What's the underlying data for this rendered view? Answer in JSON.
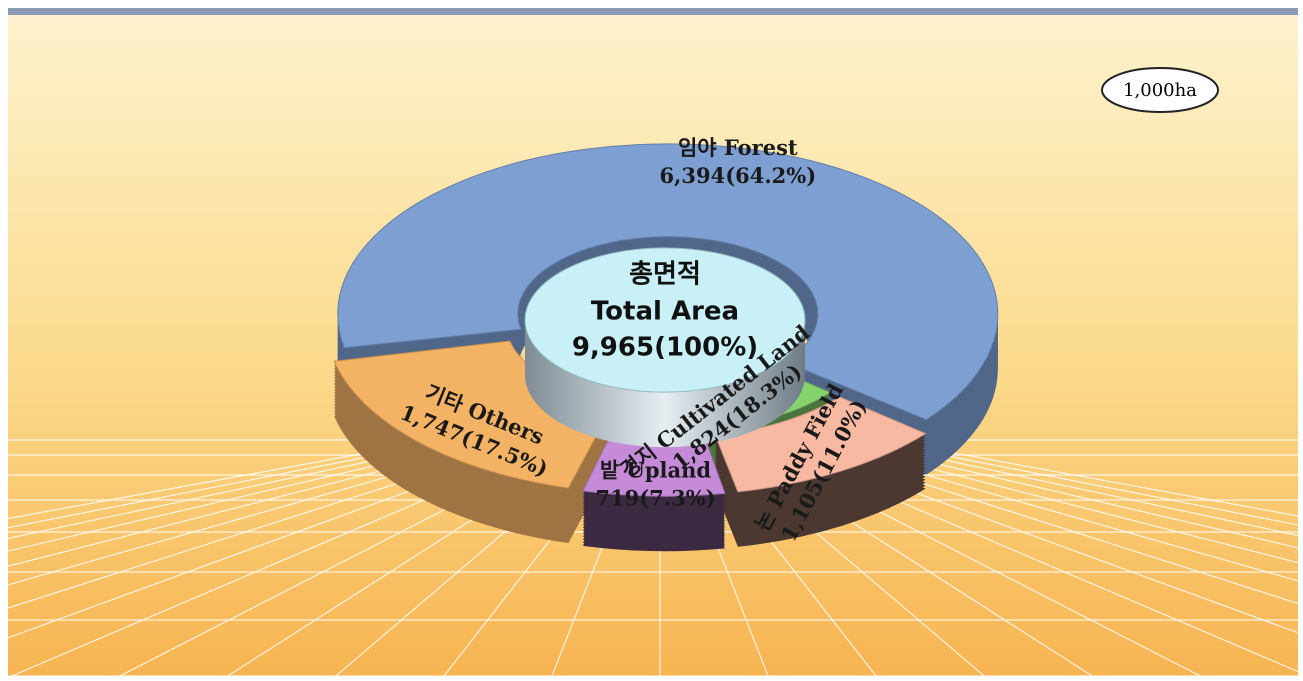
{
  "chart_data": {
    "type": "pie",
    "donut": true,
    "unit": "1,000ha",
    "center_title": "총면적",
    "center_subtitle": "Total Area",
    "total": 9965,
    "total_label": "9,965(100%)",
    "categories": [
      "임야 Forest",
      "논 Paddy Field",
      "밭 Upland",
      "기타 Others"
    ],
    "values": [
      6394,
      1105,
      719,
      1747
    ],
    "value_labels": [
      "6,394(64.2%)",
      "1,105(11.0%)",
      "719(7.3%)",
      "1,747(17.5%)"
    ],
    "colors": [
      "#7d9fd2",
      "#f8b9a2",
      "#c68bd8",
      "#f4b265"
    ],
    "group": {
      "name": "경지 Cultivated Land",
      "value": 1824,
      "value_label": "1,824(18.3%)",
      "color": "#86d36e"
    }
  }
}
